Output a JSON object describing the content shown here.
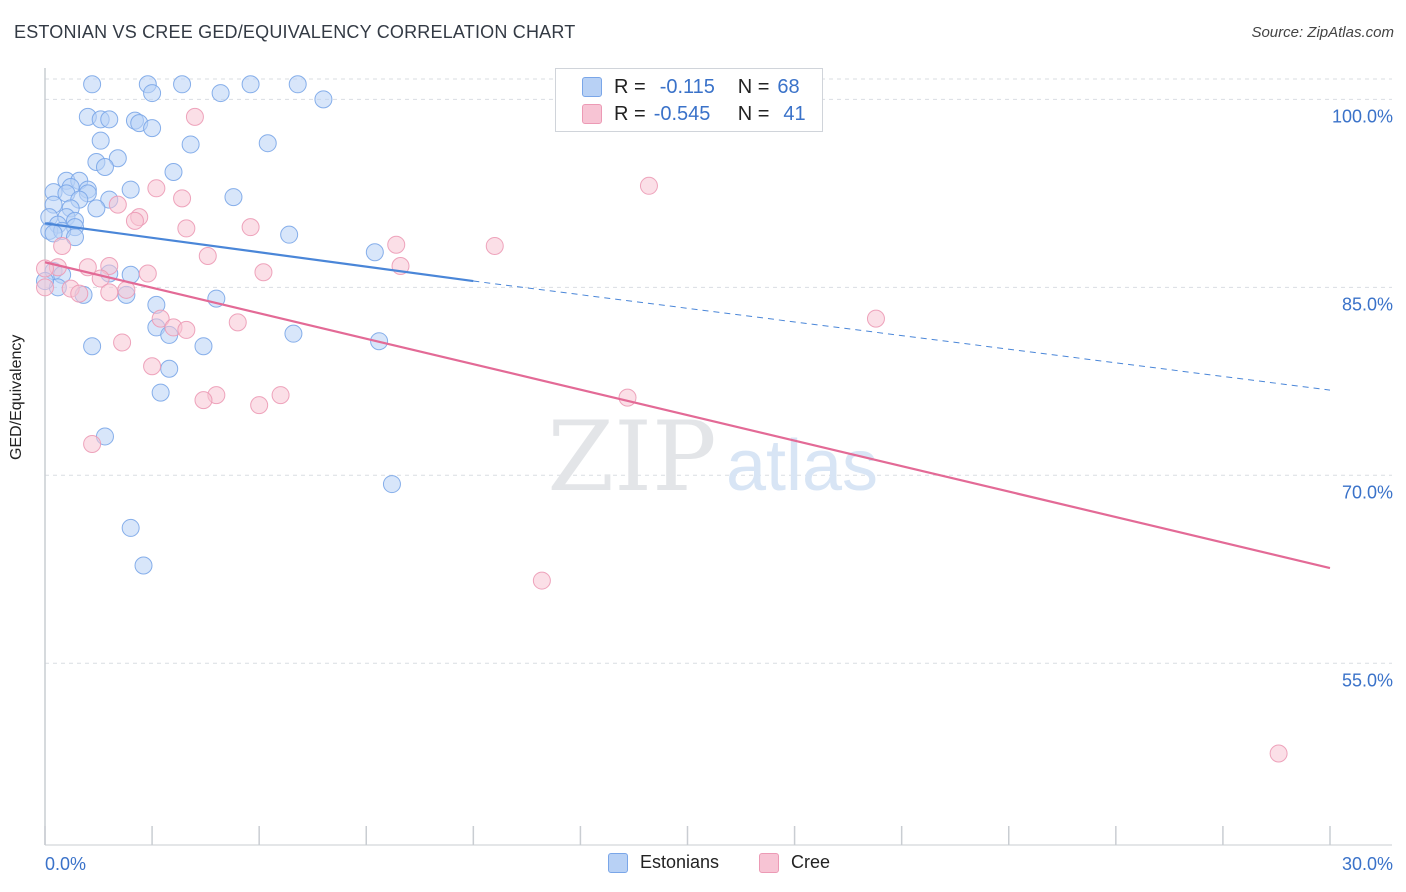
{
  "header": {
    "title": "ESTONIAN VS CREE GED/EQUIVALENCY CORRELATION CHART",
    "source": "Source: ZipAtlas.com"
  },
  "watermark": {
    "zip": "ZIP",
    "atlas": "atlas"
  },
  "legend": {
    "series": [
      {
        "name": "Estonians",
        "r_label": "R =",
        "r_value": "-0.115",
        "n_label": "N =",
        "n_value": "68",
        "fill": "#b8d1f5",
        "stroke": "#7aa6e8"
      },
      {
        "name": "Cree",
        "r_label": "R =",
        "r_value": "-0.545",
        "n_label": "N =",
        "n_value": "41",
        "fill": "#f7c4d4",
        "stroke": "#ec9ab5"
      }
    ]
  },
  "chart_data": {
    "type": "scatter",
    "title": "ESTONIAN VS CREE GED/EQUIVALENCY CORRELATION CHART",
    "xlabel": "",
    "ylabel": "GED/Equivalency",
    "xlim": [
      0,
      30
    ],
    "ylim": [
      40.5,
      102.5
    ],
    "x_tick_labels": [
      "0.0%",
      "30.0%"
    ],
    "y_ticks": [
      100,
      85,
      70,
      55
    ],
    "y_tick_labels": [
      "100.0%",
      "85.0%",
      "70.0%",
      "55.0%"
    ],
    "grid": true,
    "series": [
      {
        "name": "Estonians",
        "color": "#4a86d8",
        "fill": "#b8d1f5",
        "stroke": "#7aa6e8",
        "trend": {
          "x0": 0,
          "y0": 90.1,
          "x1": 10.0,
          "y1": 85.5,
          "dash_to_x": 30,
          "dash_to_y": 76.8
        },
        "points": [
          [
            1.1,
            101.2
          ],
          [
            2.4,
            101.2
          ],
          [
            3.2,
            101.2
          ],
          [
            4.8,
            101.2
          ],
          [
            5.9,
            101.2
          ],
          [
            2.5,
            100.5
          ],
          [
            4.1,
            100.5
          ],
          [
            6.5,
            100.0
          ],
          [
            1.0,
            98.6
          ],
          [
            1.3,
            98.4
          ],
          [
            1.5,
            98.4
          ],
          [
            2.1,
            98.3
          ],
          [
            2.2,
            98.1
          ],
          [
            2.5,
            97.7
          ],
          [
            1.3,
            96.7
          ],
          [
            3.4,
            96.4
          ],
          [
            5.2,
            96.5
          ],
          [
            1.7,
            95.3
          ],
          [
            1.2,
            95.0
          ],
          [
            1.4,
            94.6
          ],
          [
            3.0,
            94.2
          ],
          [
            0.5,
            93.5
          ],
          [
            0.8,
            93.5
          ],
          [
            0.6,
            93.0
          ],
          [
            1.0,
            92.8
          ],
          [
            2.0,
            92.8
          ],
          [
            0.2,
            92.6
          ],
          [
            0.5,
            92.5
          ],
          [
            1.0,
            92.5
          ],
          [
            4.4,
            92.2
          ],
          [
            0.8,
            92.0
          ],
          [
            1.5,
            92.0
          ],
          [
            0.2,
            91.6
          ],
          [
            0.6,
            91.3
          ],
          [
            1.2,
            91.3
          ],
          [
            0.1,
            90.6
          ],
          [
            0.5,
            90.6
          ],
          [
            0.7,
            90.3
          ],
          [
            0.3,
            90.0
          ],
          [
            0.7,
            89.8
          ],
          [
            0.1,
            89.5
          ],
          [
            0.4,
            89.5
          ],
          [
            0.2,
            89.3
          ],
          [
            0.7,
            89.0
          ],
          [
            5.7,
            89.2
          ],
          [
            7.7,
            87.8
          ],
          [
            0.2,
            86.3
          ],
          [
            0.4,
            86.0
          ],
          [
            1.5,
            86.1
          ],
          [
            2.0,
            86.0
          ],
          [
            0.3,
            85.0
          ],
          [
            0.9,
            84.4
          ],
          [
            1.9,
            84.4
          ],
          [
            4.0,
            84.1
          ],
          [
            2.6,
            83.6
          ],
          [
            2.6,
            81.8
          ],
          [
            2.9,
            81.2
          ],
          [
            5.8,
            81.3
          ],
          [
            7.8,
            80.7
          ],
          [
            1.1,
            80.3
          ],
          [
            3.7,
            80.3
          ],
          [
            2.9,
            78.5
          ],
          [
            2.7,
            76.6
          ],
          [
            1.4,
            73.1
          ],
          [
            8.1,
            69.3
          ],
          [
            2.0,
            65.8
          ],
          [
            2.3,
            62.8
          ],
          [
            0.0,
            85.5
          ]
        ]
      },
      {
        "name": "Cree",
        "color": "#e36a96",
        "fill": "#f7c4d4",
        "stroke": "#ec9ab5",
        "trend": {
          "x0": 0,
          "y0": 87.0,
          "x1": 30,
          "y1": 62.6
        },
        "points": [
          [
            3.5,
            98.6
          ],
          [
            14.1,
            93.1
          ],
          [
            2.6,
            92.9
          ],
          [
            3.2,
            92.1
          ],
          [
            1.7,
            91.6
          ],
          [
            2.2,
            90.6
          ],
          [
            2.1,
            90.3
          ],
          [
            3.3,
            89.7
          ],
          [
            4.8,
            89.8
          ],
          [
            8.2,
            88.4
          ],
          [
            10.5,
            88.3
          ],
          [
            0.4,
            88.3
          ],
          [
            3.8,
            87.5
          ],
          [
            8.3,
            86.7
          ],
          [
            1.0,
            86.6
          ],
          [
            1.5,
            86.7
          ],
          [
            0.3,
            86.6
          ],
          [
            5.1,
            86.2
          ],
          [
            0.0,
            86.5
          ],
          [
            1.3,
            85.7
          ],
          [
            1.9,
            84.8
          ],
          [
            0.6,
            84.9
          ],
          [
            0.8,
            84.5
          ],
          [
            0.0,
            85.0
          ],
          [
            19.4,
            82.5
          ],
          [
            2.7,
            82.5
          ],
          [
            4.5,
            82.2
          ],
          [
            3.0,
            81.8
          ],
          [
            3.3,
            81.6
          ],
          [
            1.8,
            80.6
          ],
          [
            2.5,
            78.7
          ],
          [
            4.0,
            76.4
          ],
          [
            5.5,
            76.4
          ],
          [
            3.7,
            76.0
          ],
          [
            5.0,
            75.6
          ],
          [
            13.6,
            76.2
          ],
          [
            1.1,
            72.5
          ],
          [
            11.6,
            61.6
          ],
          [
            28.8,
            47.8
          ],
          [
            1.5,
            84.6
          ],
          [
            2.4,
            86.1
          ]
        ]
      }
    ]
  }
}
